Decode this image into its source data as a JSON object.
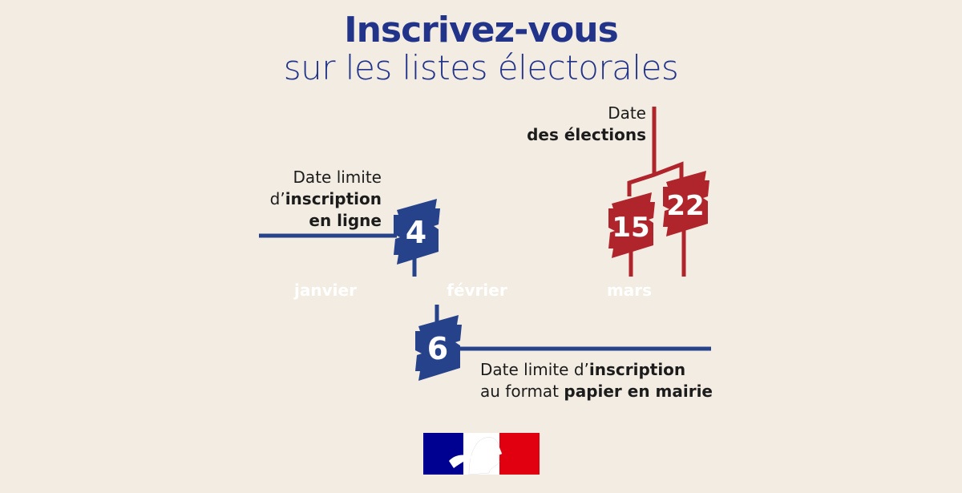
{
  "title": "Inscrivez-vous",
  "subtitle": "sur les listes électorales",
  "months": [
    {
      "label": "janvier",
      "color": "#7a9fe8"
    },
    {
      "label": "février",
      "color": "#26428b"
    },
    {
      "label": "mars",
      "color": "#b0242b"
    }
  ],
  "events": {
    "online": {
      "day": "4",
      "line1": "Date limite",
      "line2_light": "d’",
      "line2_bold": "inscription",
      "line3_bold": "en ligne",
      "color": "#26428b"
    },
    "paper": {
      "day": "6",
      "line1_light": "Date limite d’",
      "line1_bold": "inscription",
      "line2_light": "au format ",
      "line2_bold": "papier en mairie",
      "color": "#26428b"
    },
    "elections": {
      "days": [
        "15",
        "22"
      ],
      "line1": "Date",
      "line2_bold": "des élections",
      "color": "#b0242b"
    }
  },
  "logo": {
    "name": "marianne-logo",
    "colors": [
      "#000091",
      "#ffffff",
      "#e1000f"
    ]
  }
}
